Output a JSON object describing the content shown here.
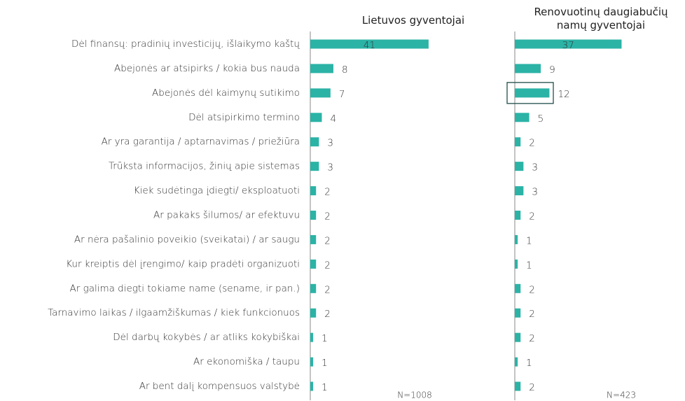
{
  "chart_data": {
    "type": "bar",
    "orientation": "horizontal",
    "categories": [
      "Dėl finansų: pradinių investicijų, išlaikymo kaštų",
      "Abejonės ar atsipirks / kokia bus nauda",
      "Abejonės dėl kaimynų sutikimo",
      "Dėl atsipirkimo termino",
      "Ar yra garantija / aptarnavimas / priežiūra",
      "Trūksta informacijos, žinių apie sistemas",
      "Kiek sudėtinga įdiegti/ eksploatuoti",
      "Ar pakaks šilumos/ ar efektuvu",
      "Ar nėra pašalinio poveikio (sveikatai) / ar saugu",
      "Kur kreiptis dėl įrengimo/ kaip pradėti organizuoti",
      "Ar galima diegti tokiame name (sename, ir pan.)",
      "Tarnavimo laikas / ilgaamžiškumas / kiek funkcionuos",
      "Dėl darbų kokybės / ar atliks kokybiškai",
      "Ar ekonomiška / taupu",
      "Ar bent dalį kompensuos valstybė"
    ],
    "series": [
      {
        "name": "Lietuvos gyventojai",
        "color": "#2bb3a6",
        "n_label": "N=1008",
        "values": [
          41,
          8,
          7,
          4,
          3,
          3,
          2,
          2,
          2,
          2,
          2,
          2,
          1,
          1,
          1
        ]
      },
      {
        "name": "Renovuotinų daugiabučių namų gyventojai",
        "color": "#2bb3a6",
        "n_label": "N=423",
        "highlight": 2,
        "values": [
          37,
          9,
          12,
          5,
          2,
          3,
          3,
          2,
          1,
          1,
          2,
          2,
          2,
          1,
          2
        ]
      }
    ],
    "xlim": [
      0,
      50
    ]
  }
}
